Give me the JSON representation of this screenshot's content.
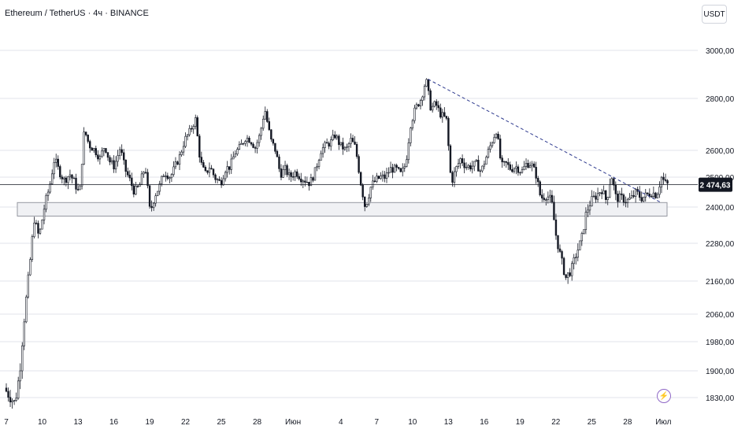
{
  "header": {
    "title": "Ethereum / TetherUS · 4ч · BINANCE",
    "currency": "USDT"
  },
  "colors": {
    "candle": "#131722",
    "grid": "#e0e3eb",
    "trendline": "#2f3b8f",
    "zone_fill": "#f0f1f4",
    "zone_border": "#9598a1",
    "price_label_bg": "#131722",
    "price_label_text": "#ffffff",
    "axis_text": "#131722",
    "lightning": "#8e67c6"
  },
  "icons": {
    "lightning": "lightning-icon"
  },
  "chart_data": {
    "type": "candlestick",
    "symbol": "ETHUSDT",
    "interval": "4h",
    "exchange": "BINANCE",
    "y_ticks": [
      "3000,00",
      "2800,00",
      "2600,00",
      "2500,00",
      "2400,00",
      "2280,00",
      "2160,00",
      "2060,00",
      "1980,00",
      "1900,00",
      "1830,00"
    ],
    "y_tick_values": [
      3000,
      2800,
      2600,
      2500,
      2400,
      2280,
      2160,
      2060,
      1980,
      1900,
      1830
    ],
    "x_ticks": [
      "7",
      "10",
      "13",
      "16",
      "19",
      "22",
      "25",
      "28",
      "Июн",
      "4",
      "7",
      "10",
      "13",
      "16",
      "19",
      "22",
      "25",
      "28",
      "Июл"
    ],
    "x_tick_days": [
      0,
      3,
      6,
      9,
      12,
      15,
      18,
      21,
      24,
      28,
      31,
      34,
      37,
      40,
      43,
      46,
      49,
      52,
      55
    ],
    "current_price": 2474.63,
    "current_price_label": "2 474,63",
    "support_zone": {
      "from": 2370,
      "to": 2415
    },
    "trendline": [
      {
        "day": 35.3,
        "price": 2880
      },
      {
        "day": 54.8,
        "price": 2415
      }
    ],
    "path": [
      [
        0.0,
        1855
      ],
      [
        0.4,
        1835
      ],
      [
        0.9,
        1815
      ],
      [
        1.3,
        1900
      ],
      [
        1.7,
        2060
      ],
      [
        2.1,
        2200
      ],
      [
        2.5,
        2360
      ],
      [
        2.9,
        2300
      ],
      [
        3.4,
        2410
      ],
      [
        3.8,
        2470
      ],
      [
        4.2,
        2570
      ],
      [
        4.6,
        2520
      ],
      [
        5.0,
        2490
      ],
      [
        5.5,
        2510
      ],
      [
        5.9,
        2480
      ],
      [
        6.3,
        2440
      ],
      [
        6.7,
        2680
      ],
      [
        7.1,
        2620
      ],
      [
        7.6,
        2600
      ],
      [
        8.0,
        2570
      ],
      [
        8.4,
        2620
      ],
      [
        8.8,
        2560
      ],
      [
        9.2,
        2540
      ],
      [
        9.7,
        2610
      ],
      [
        10.1,
        2530
      ],
      [
        10.5,
        2490
      ],
      [
        10.9,
        2450
      ],
      [
        11.3,
        2470
      ],
      [
        11.8,
        2540
      ],
      [
        12.2,
        2380
      ],
      [
        12.6,
        2440
      ],
      [
        13.0,
        2470
      ],
      [
        13.4,
        2520
      ],
      [
        13.9,
        2500
      ],
      [
        14.3,
        2540
      ],
      [
        14.7,
        2580
      ],
      [
        15.1,
        2640
      ],
      [
        15.5,
        2670
      ],
      [
        16.0,
        2720
      ],
      [
        16.4,
        2560
      ],
      [
        16.8,
        2510
      ],
      [
        17.2,
        2540
      ],
      [
        17.6,
        2500
      ],
      [
        18.1,
        2480
      ],
      [
        18.5,
        2530
      ],
      [
        18.9,
        2540
      ],
      [
        19.3,
        2590
      ],
      [
        19.7,
        2610
      ],
      [
        20.2,
        2650
      ],
      [
        20.6,
        2640
      ],
      [
        21.0,
        2610
      ],
      [
        21.4,
        2660
      ],
      [
        21.8,
        2760
      ],
      [
        22.3,
        2640
      ],
      [
        22.7,
        2600
      ],
      [
        23.1,
        2510
      ],
      [
        23.5,
        2530
      ],
      [
        23.9,
        2500
      ],
      [
        24.4,
        2520
      ],
      [
        24.8,
        2500
      ],
      [
        25.2,
        2490
      ],
      [
        25.6,
        2480
      ],
      [
        26.0,
        2520
      ],
      [
        26.5,
        2600
      ],
      [
        26.9,
        2620
      ],
      [
        27.3,
        2630
      ],
      [
        27.7,
        2660
      ],
      [
        28.1,
        2620
      ],
      [
        28.6,
        2600
      ],
      [
        29.0,
        2640
      ],
      [
        29.4,
        2610
      ],
      [
        29.8,
        2490
      ],
      [
        30.2,
        2400
      ],
      [
        30.7,
        2470
      ],
      [
        31.1,
        2490
      ],
      [
        31.5,
        2500
      ],
      [
        31.9,
        2500
      ],
      [
        32.3,
        2530
      ],
      [
        32.8,
        2530
      ],
      [
        33.2,
        2510
      ],
      [
        33.6,
        2550
      ],
      [
        34.0,
        2700
      ],
      [
        34.4,
        2760
      ],
      [
        34.9,
        2800
      ],
      [
        35.3,
        2880
      ],
      [
        35.7,
        2760
      ],
      [
        36.1,
        2780
      ],
      [
        36.5,
        2740
      ],
      [
        37.0,
        2720
      ],
      [
        37.4,
        2480
      ],
      [
        37.8,
        2530
      ],
      [
        38.2,
        2570
      ],
      [
        38.6,
        2540
      ],
      [
        39.1,
        2540
      ],
      [
        39.5,
        2550
      ],
      [
        39.9,
        2520
      ],
      [
        40.3,
        2570
      ],
      [
        40.7,
        2620
      ],
      [
        41.2,
        2680
      ],
      [
        41.6,
        2540
      ],
      [
        42.0,
        2550
      ],
      [
        42.4,
        2530
      ],
      [
        42.8,
        2540
      ],
      [
        43.3,
        2520
      ],
      [
        43.7,
        2550
      ],
      [
        44.1,
        2550
      ],
      [
        44.5,
        2510
      ],
      [
        44.9,
        2430
      ],
      [
        45.4,
        2440
      ],
      [
        45.8,
        2420
      ],
      [
        46.2,
        2300
      ],
      [
        46.6,
        2230
      ],
      [
        47.0,
        2170
      ],
      [
        47.5,
        2200
      ],
      [
        47.9,
        2250
      ],
      [
        48.3,
        2290
      ],
      [
        48.7,
        2380
      ],
      [
        49.1,
        2420
      ],
      [
        49.6,
        2440
      ],
      [
        50.0,
        2460
      ],
      [
        50.4,
        2420
      ],
      [
        50.8,
        2510
      ],
      [
        51.2,
        2430
      ],
      [
        51.7,
        2430
      ],
      [
        52.1,
        2420
      ],
      [
        52.5,
        2430
      ],
      [
        52.9,
        2450
      ],
      [
        53.3,
        2430
      ],
      [
        53.8,
        2440
      ],
      [
        54.2,
        2450
      ],
      [
        54.6,
        2440
      ],
      [
        55.0,
        2500
      ],
      [
        55.4,
        2475
      ]
    ]
  }
}
